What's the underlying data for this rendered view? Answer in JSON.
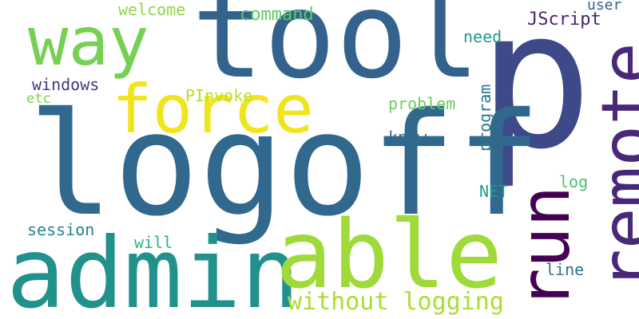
{
  "wordcloud": {
    "words": [
      {
        "text": "p",
        "color": "#3e4989"
      },
      {
        "text": "logoff",
        "color": "#31688e"
      },
      {
        "text": "tool",
        "color": "#33638d"
      },
      {
        "text": "admin",
        "color": "#21918c"
      },
      {
        "text": "able",
        "color": "#9fda3a"
      },
      {
        "text": "remote",
        "color": "#482878"
      },
      {
        "text": "run",
        "color": "#440154"
      },
      {
        "text": "way",
        "color": "#75d054"
      },
      {
        "text": "force",
        "color": "#f0e51c"
      },
      {
        "text": "without logging",
        "color": "#addc30"
      },
      {
        "text": "command",
        "color": "#5ec962"
      },
      {
        "text": "welcome",
        "color": "#8fd744"
      },
      {
        "text": "user",
        "color": "#35608d"
      },
      {
        "text": "JScript",
        "color": "#482475"
      },
      {
        "text": "need",
        "color": "#1f9a8a"
      },
      {
        "text": "windows",
        "color": "#443983"
      },
      {
        "text": "etc",
        "color": "#7ad151"
      },
      {
        "text": "PInvoke",
        "color": "#bddf26"
      },
      {
        "text": "problem",
        "color": "#6ccd5a"
      },
      {
        "text": "program",
        "color": "#2a788e"
      },
      {
        "text": "know",
        "color": "#31688e"
      },
      {
        "text": "log",
        "color": "#4ac16d"
      },
      {
        "text": "NET",
        "color": "#1f988b"
      },
      {
        "text": "session",
        "color": "#26818e"
      },
      {
        "text": "will",
        "color": "#2db27d"
      },
      {
        "text": "line",
        "color": "#2c718e"
      }
    ]
  }
}
